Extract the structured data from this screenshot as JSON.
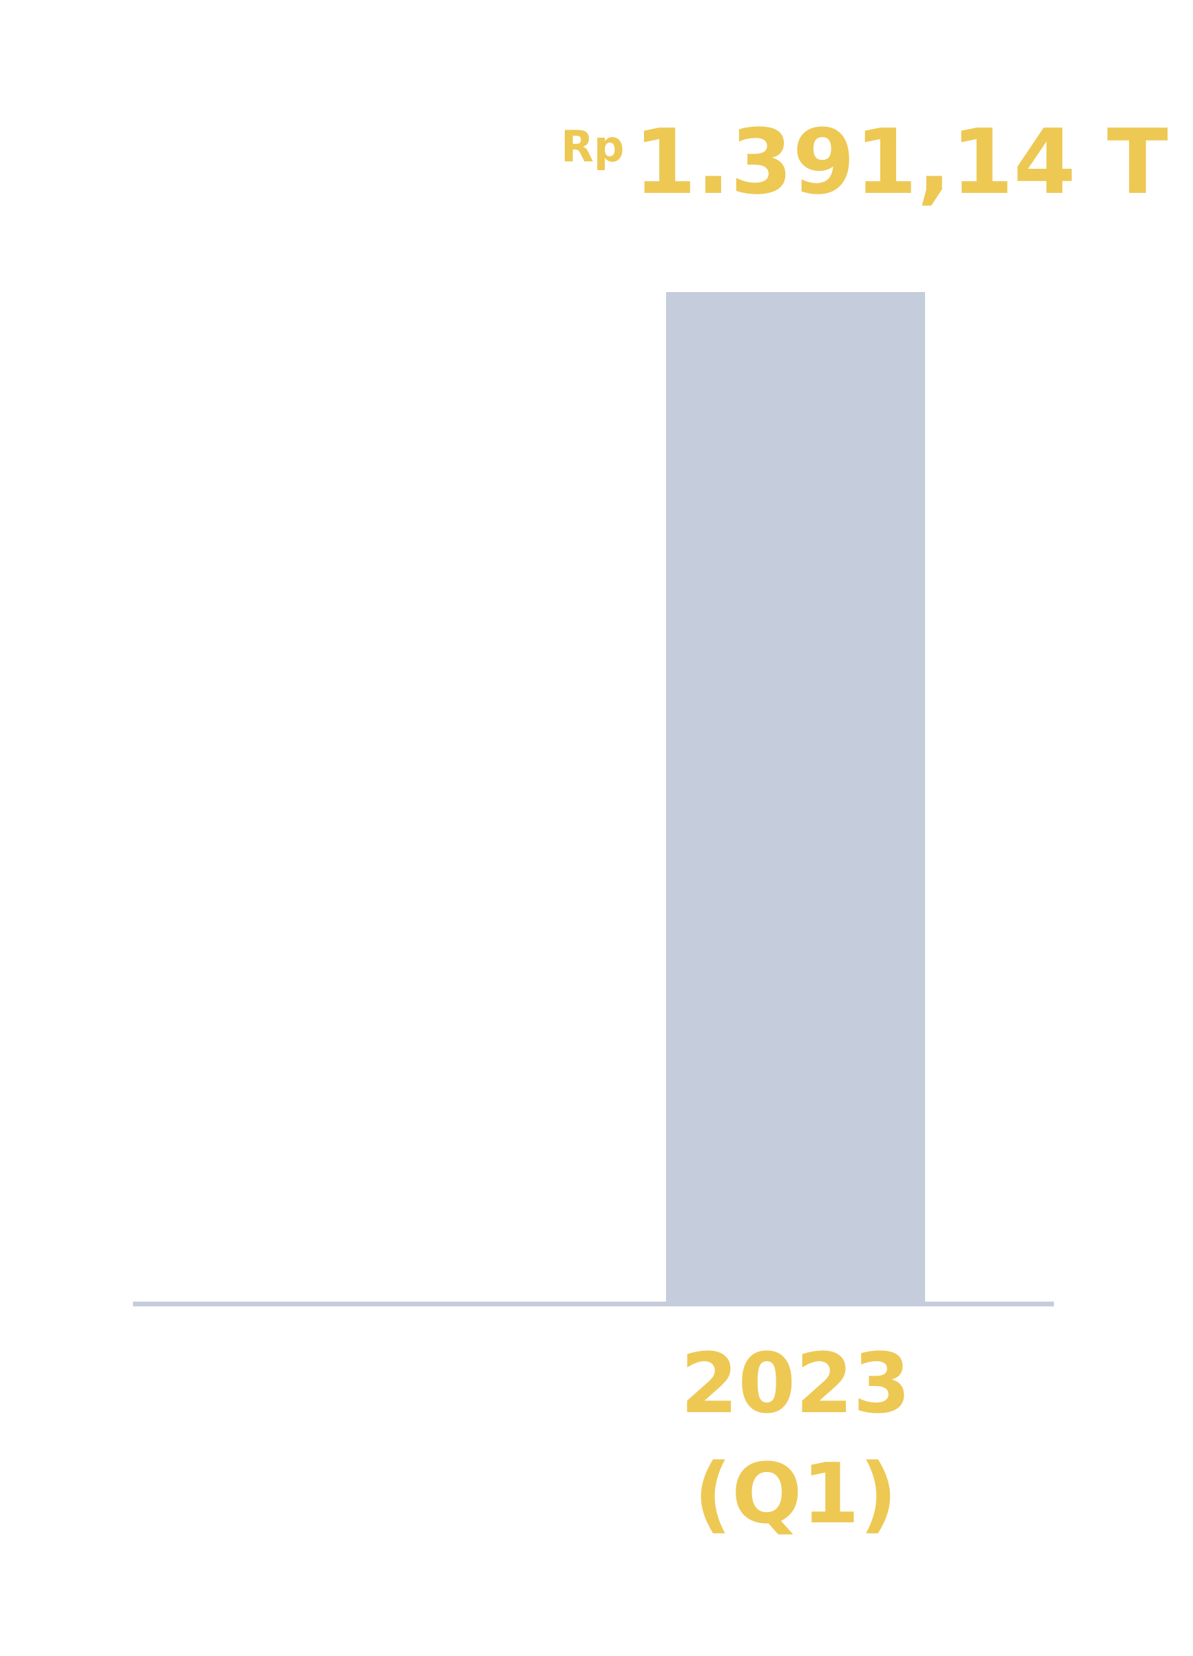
{
  "chart_data": {
    "type": "bar",
    "categories": [
      "",
      "2023\n(Q1)"
    ],
    "values": [
      null,
      1391.14
    ],
    "value_labels": [
      "",
      "1.391,14 T"
    ],
    "currency_prefix": "Rp",
    "ylim": [
      0,
      1391.14
    ],
    "grid": false,
    "legend": "none",
    "colors": {
      "bar": "#C5CCDB",
      "baseline": "#C5CCDB",
      "label": "#EDC853"
    }
  }
}
